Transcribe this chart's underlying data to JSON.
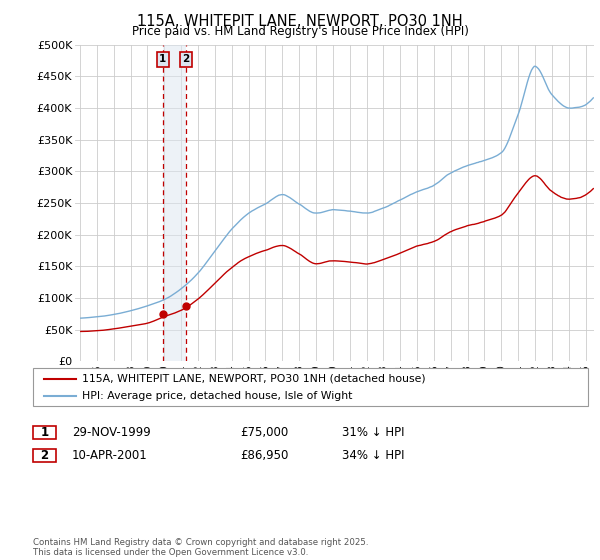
{
  "title": "115A, WHITEPIT LANE, NEWPORT, PO30 1NH",
  "subtitle": "Price paid vs. HM Land Registry's House Price Index (HPI)",
  "legend_line1": "115A, WHITEPIT LANE, NEWPORT, PO30 1NH (detached house)",
  "legend_line2": "HPI: Average price, detached house, Isle of Wight",
  "transaction1_date": "29-NOV-1999",
  "transaction1_price": "£75,000",
  "transaction1_hpi": "31% ↓ HPI",
  "transaction2_date": "10-APR-2001",
  "transaction2_price": "£86,950",
  "transaction2_hpi": "34% ↓ HPI",
  "footer": "Contains HM Land Registry data © Crown copyright and database right 2025.\nThis data is licensed under the Open Government Licence v3.0.",
  "ylim": [
    0,
    500000
  ],
  "yticks": [
    0,
    50000,
    100000,
    150000,
    200000,
    250000,
    300000,
    350000,
    400000,
    450000,
    500000
  ],
  "ytick_labels": [
    "£0",
    "£50K",
    "£100K",
    "£150K",
    "£200K",
    "£250K",
    "£300K",
    "£350K",
    "£400K",
    "£450K",
    "£500K"
  ],
  "hpi_color": "#7aadd4",
  "price_color": "#c00000",
  "annotation_fill": "#dce6f1",
  "annotation_border": "#c00000",
  "vline_fill": "#dce6f1",
  "background_color": "#ffffff",
  "plot_bg_color": "#ffffff",
  "grid_color": "#cccccc",
  "transaction1_x": 1999.917,
  "transaction1_y": 75000,
  "transaction2_x": 2001.292,
  "transaction2_y": 86950,
  "xlim_left": 1994.7,
  "xlim_right": 2025.5
}
